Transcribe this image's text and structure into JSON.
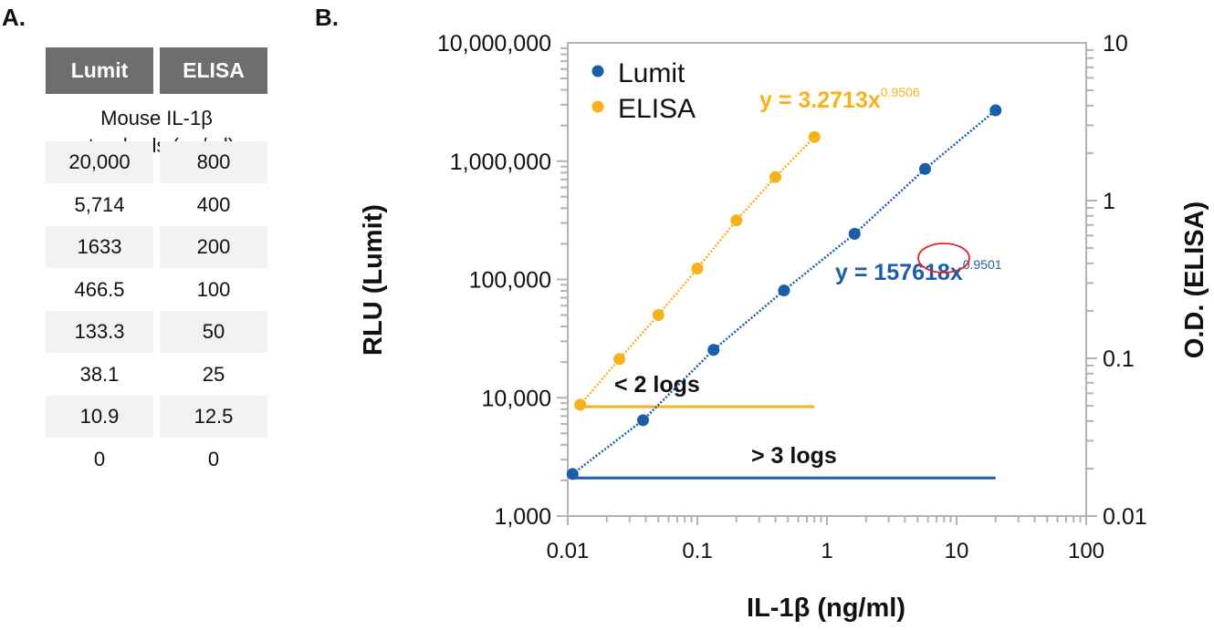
{
  "panel_a": {
    "label": "A.",
    "headers": [
      "Lumit",
      "ELISA"
    ],
    "subheader_lines": [
      "Mouse IL-1β",
      "standards (pg/ml)"
    ],
    "rows": [
      [
        "20,000",
        "800"
      ],
      [
        "5,714",
        "400"
      ],
      [
        "1633",
        "200"
      ],
      [
        "466.5",
        "100"
      ],
      [
        "133.3",
        "50"
      ],
      [
        "38.1",
        "25"
      ],
      [
        "10.9",
        "12.5"
      ],
      [
        "0",
        "0"
      ]
    ]
  },
  "panel_b_label": "B.",
  "chart_data": {
    "type": "scatter",
    "xlabel": "IL-1β (ng/ml)",
    "ylabel": "RLU (Lumit)",
    "y2label": "O.D. (ELISA)",
    "xscale": "log",
    "yscale": "log",
    "y2scale": "log",
    "xlim": [
      0.01,
      100
    ],
    "ylim": [
      1000,
      10000000
    ],
    "y2lim": [
      0.01,
      10
    ],
    "x_ticks": [
      "0.01",
      "0.1",
      "1",
      "10",
      "100"
    ],
    "y_ticks": [
      "1,000",
      "10,000",
      "100,000",
      "1,000,000",
      "10,000,000"
    ],
    "y2_ticks": [
      "0.01",
      "0.1",
      "1",
      "10"
    ],
    "grid": false,
    "legend": "top-left",
    "series": [
      {
        "name": "Lumit",
        "axis": "left",
        "color": "#1a5ea8",
        "x": [
          0.0109,
          0.0381,
          0.1333,
          0.4665,
          1.633,
          5.714,
          20
        ],
        "y": [
          2265,
          6460,
          25400,
          80700,
          243000,
          860000,
          2690000
        ],
        "fit": {
          "a": 157618,
          "b": 0.9501,
          "label_prefix": "y = 157618x",
          "label_exp": "0.9501"
        }
      },
      {
        "name": "ELISA",
        "axis": "right",
        "color": "#f7b21b",
        "x": [
          0.0125,
          0.025,
          0.05,
          0.1,
          0.2,
          0.4,
          0.8
        ],
        "y": [
          0.0508,
          0.099,
          0.188,
          0.371,
          0.75,
          1.41,
          2.53
        ],
        "fit": {
          "a": 3.2713,
          "b": 0.9506,
          "label_prefix": "y = 3.2713x",
          "label_exp": "0.9506"
        }
      }
    ],
    "annotations": [
      {
        "text": "< 2 logs",
        "color": "#f7b21b",
        "x_range": [
          0.0125,
          0.8
        ],
        "y": 8400
      },
      {
        "text": "> 3 logs",
        "color": "#1a5ea8",
        "x_range": [
          0.0109,
          20
        ],
        "y": 2100
      }
    ],
    "highlight_color": "#e0242b"
  }
}
